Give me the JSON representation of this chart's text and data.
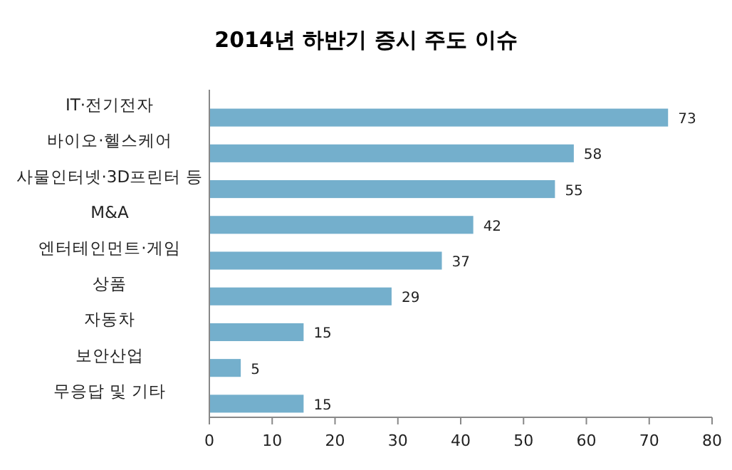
{
  "chart_data": {
    "type": "bar",
    "orientation": "horizontal",
    "title": "2014년 하반기 증시 주도 이슈",
    "categories": [
      "IT·전기전자",
      "바이오·헬스케어",
      "사물인터넷·3D프린터 등",
      "M&A",
      "엔터테인먼트·게임",
      "상품",
      "자동차",
      "보안산업",
      "무응답 및 기타"
    ],
    "values": [
      73,
      58,
      55,
      42,
      37,
      29,
      15,
      5,
      15
    ],
    "color": "#74afcc",
    "xlim": [
      0,
      80
    ],
    "xticks": [
      0,
      10,
      20,
      30,
      40,
      50,
      60,
      70,
      80
    ],
    "data_labels": true
  }
}
